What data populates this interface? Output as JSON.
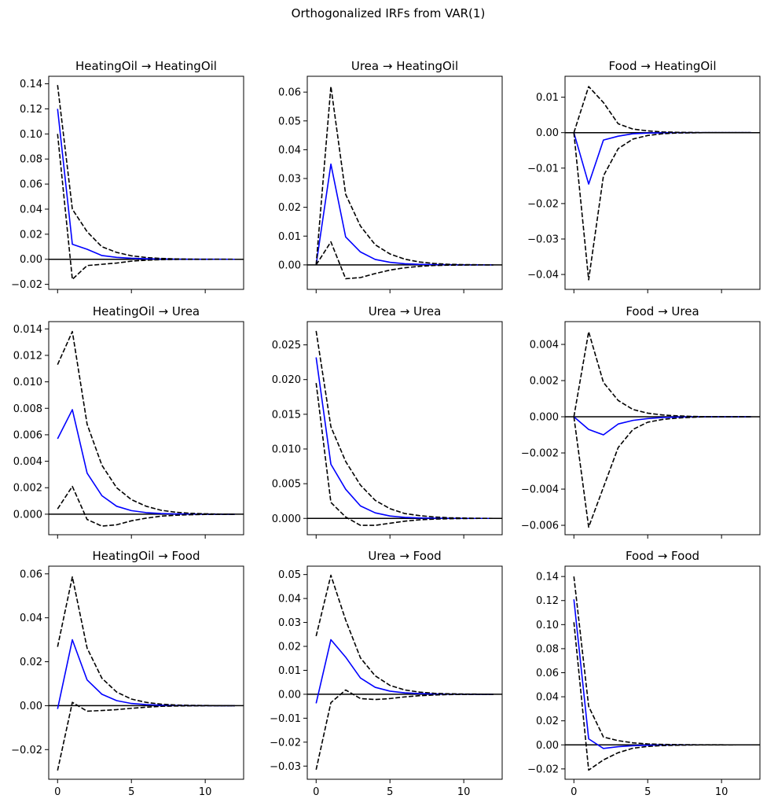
{
  "figure": {
    "title": "Orthogonalized IRFs from VAR(1)"
  },
  "colors": {
    "irf": "#0000ff",
    "band": "#000000",
    "zero": "#000000"
  },
  "chart_data": [
    {
      "type": "line",
      "title": "HeatingOil → HeatingOil",
      "ylim": [
        -0.024,
        0.146
      ],
      "yticks": [
        -0.02,
        0.0,
        0.02,
        0.04,
        0.06,
        0.08,
        0.1,
        0.12,
        0.14
      ],
      "ytick_labels": [
        "−0.02",
        "0.00",
        "0.02",
        "0.04",
        "0.06",
        "0.08",
        "0.10",
        "0.12",
        "0.14"
      ],
      "xlim": [
        -0.6,
        12.6
      ],
      "xticks": [
        0,
        5,
        10
      ],
      "xtick_labels": [],
      "x": [
        0,
        1,
        2,
        3,
        4,
        5,
        6,
        7,
        8,
        9,
        10,
        11,
        12
      ],
      "series": [
        {
          "name": "irf",
          "values": [
            0.12,
            0.012,
            0.008,
            0.003,
            0.0015,
            0.0008,
            0.0004,
            0.0002,
            0.0001,
            5e-05,
            2e-05,
            1e-05,
            0.0
          ]
        },
        {
          "name": "upper",
          "values": [
            0.139,
            0.04,
            0.022,
            0.01,
            0.0055,
            0.0028,
            0.0014,
            0.0007,
            0.0003,
            0.0001,
            5e-05,
            2e-05,
            1e-05
          ]
        },
        {
          "name": "lower",
          "values": [
            0.1,
            -0.016,
            -0.005,
            -0.004,
            -0.003,
            -0.0015,
            -0.0007,
            -0.0003,
            -0.0001,
            -5e-05,
            -2e-05,
            0.0,
            0.0
          ]
        }
      ]
    },
    {
      "type": "line",
      "title": "Urea → HeatingOil",
      "ylim": [
        -0.0085,
        0.0655
      ],
      "yticks": [
        0.0,
        0.01,
        0.02,
        0.03,
        0.04,
        0.05,
        0.06
      ],
      "ytick_labels": [
        "0.00",
        "0.01",
        "0.02",
        "0.03",
        "0.04",
        "0.05",
        "0.06"
      ],
      "xlim": [
        -0.6,
        12.6
      ],
      "xticks": [
        0,
        5,
        10
      ],
      "xtick_labels": [],
      "x": [
        0,
        1,
        2,
        3,
        4,
        5,
        6,
        7,
        8,
        9,
        10,
        11,
        12
      ],
      "series": [
        {
          "name": "irf",
          "values": [
            0.0,
            0.035,
            0.0097,
            0.0045,
            0.0019,
            0.0009,
            0.0004,
            0.0002,
            0.0001,
            5e-05,
            2e-05,
            1e-05,
            0.0
          ]
        },
        {
          "name": "upper",
          "values": [
            0.0,
            0.062,
            0.0245,
            0.0135,
            0.007,
            0.0038,
            0.002,
            0.001,
            0.0005,
            0.0002,
            0.0001,
            5e-05,
            0.0
          ]
        },
        {
          "name": "lower",
          "values": [
            0.0,
            0.008,
            -0.0048,
            -0.0044,
            -0.003,
            -0.0018,
            -0.001,
            -0.0005,
            -0.0002,
            -0.0001,
            -5e-05,
            0.0,
            0.0
          ]
        }
      ]
    },
    {
      "type": "line",
      "title": "Food → HeatingOil",
      "ylim": [
        -0.0442,
        0.0159
      ],
      "yticks": [
        -0.04,
        -0.03,
        -0.02,
        -0.01,
        0.0,
        0.01
      ],
      "ytick_labels": [
        "−0.04",
        "−0.03",
        "−0.02",
        "−0.01",
        "0.00",
        "0.01"
      ],
      "xlim": [
        -0.6,
        12.6
      ],
      "xticks": [
        0,
        5,
        10
      ],
      "xtick_labels": [],
      "x": [
        0,
        1,
        2,
        3,
        4,
        5,
        6,
        7,
        8,
        9,
        10,
        11,
        12
      ],
      "series": [
        {
          "name": "irf",
          "values": [
            0.0,
            -0.0145,
            -0.0021,
            -0.001,
            -0.0003,
            -0.0001,
            -5e-05,
            0.0,
            0.0,
            0.0,
            0.0,
            0.0,
            0.0
          ]
        },
        {
          "name": "upper",
          "values": [
            0.0,
            0.013,
            0.0085,
            0.0025,
            0.001,
            0.0005,
            0.0002,
            0.0001,
            5e-05,
            0.0,
            0.0,
            0.0,
            0.0
          ]
        },
        {
          "name": "lower",
          "values": [
            0.0,
            -0.0415,
            -0.0122,
            -0.0045,
            -0.0018,
            -0.0008,
            -0.0003,
            -0.0001,
            -5e-05,
            0.0,
            0.0,
            0.0,
            0.0
          ]
        }
      ]
    },
    {
      "type": "line",
      "title": "HeatingOil → Urea",
      "ylim": [
        -0.00155,
        0.01455
      ],
      "yticks": [
        0.0,
        0.002,
        0.004,
        0.006,
        0.008,
        0.01,
        0.012,
        0.014
      ],
      "ytick_labels": [
        "0.000",
        "0.002",
        "0.004",
        "0.006",
        "0.008",
        "0.010",
        "0.012",
        "0.014"
      ],
      "xlim": [
        -0.6,
        12.6
      ],
      "xticks": [
        0,
        5,
        10
      ],
      "xtick_labels": [],
      "x": [
        0,
        1,
        2,
        3,
        4,
        5,
        6,
        7,
        8,
        9,
        10,
        11,
        12
      ],
      "series": [
        {
          "name": "irf",
          "values": [
            0.0057,
            0.0079,
            0.0031,
            0.0014,
            0.0006,
            0.00027,
            0.00012,
            5e-05,
            2e-05,
            1e-05,
            0.0,
            0.0,
            0.0
          ]
        },
        {
          "name": "upper",
          "values": [
            0.0113,
            0.0138,
            0.0068,
            0.0037,
            0.002,
            0.0011,
            0.0006,
            0.0003,
            0.00015,
            7e-05,
            3e-05,
            1e-05,
            0.0
          ]
        },
        {
          "name": "lower",
          "values": [
            0.0004,
            0.0021,
            -0.0004,
            -0.0009,
            -0.0008,
            -0.0005,
            -0.0003,
            -0.00015,
            -8e-05,
            -4e-05,
            -2e-05,
            -1e-05,
            0.0
          ]
        }
      ]
    },
    {
      "type": "line",
      "title": "Urea → Urea",
      "ylim": [
        -0.00235,
        0.02835
      ],
      "yticks": [
        0.0,
        0.005,
        0.01,
        0.015,
        0.02,
        0.025
      ],
      "ytick_labels": [
        "0.000",
        "0.005",
        "0.010",
        "0.015",
        "0.020",
        "0.025"
      ],
      "xlim": [
        -0.6,
        12.6
      ],
      "xticks": [
        0,
        5,
        10
      ],
      "xtick_labels": [],
      "x": [
        0,
        1,
        2,
        3,
        4,
        5,
        6,
        7,
        8,
        9,
        10,
        11,
        12
      ],
      "series": [
        {
          "name": "irf",
          "values": [
            0.0232,
            0.0078,
            0.0042,
            0.0018,
            0.0008,
            0.00035,
            0.00015,
            7e-05,
            3e-05,
            1e-05,
            0.0,
            0.0,
            0.0
          ]
        },
        {
          "name": "upper",
          "values": [
            0.027,
            0.0132,
            0.0082,
            0.0048,
            0.0026,
            0.0014,
            0.0007,
            0.0004,
            0.0002,
            0.0001,
            5e-05,
            2e-05,
            0.0
          ]
        },
        {
          "name": "lower",
          "values": [
            0.0195,
            0.0023,
            0.0002,
            -0.001,
            -0.001,
            -0.0007,
            -0.0004,
            -0.0002,
            -0.0001,
            -5e-05,
            -2e-05,
            0.0,
            0.0
          ]
        }
      ]
    },
    {
      "type": "line",
      "title": "Food → Urea",
      "ylim": [
        -0.00652,
        0.00526
      ],
      "yticks": [
        -0.006,
        -0.004,
        -0.002,
        0.0,
        0.002,
        0.004
      ],
      "ytick_labels": [
        "−0.006",
        "−0.004",
        "−0.002",
        "0.000",
        "0.002",
        "0.004"
      ],
      "xlim": [
        -0.6,
        12.6
      ],
      "xticks": [
        0,
        5,
        10
      ],
      "xtick_labels": [],
      "x": [
        0,
        1,
        2,
        3,
        4,
        5,
        6,
        7,
        8,
        9,
        10,
        11,
        12
      ],
      "series": [
        {
          "name": "irf",
          "values": [
            0.0,
            -0.0007,
            -0.001,
            -0.0004,
            -0.0002,
            -0.0001,
            -4e-05,
            -2e-05,
            0.0,
            0.0,
            0.0,
            0.0,
            0.0
          ]
        },
        {
          "name": "upper",
          "values": [
            0.0,
            0.0047,
            0.0019,
            0.0009,
            0.0004,
            0.0002,
            0.0001,
            5e-05,
            2e-05,
            0.0,
            0.0,
            0.0,
            0.0
          ]
        },
        {
          "name": "lower",
          "values": [
            0.0,
            -0.0061,
            -0.0039,
            -0.0017,
            -0.0007,
            -0.0003,
            -0.00015,
            -7e-05,
            -3e-05,
            0.0,
            0.0,
            0.0,
            0.0
          ]
        }
      ]
    },
    {
      "type": "line",
      "title": "HeatingOil → Food",
      "ylim": [
        -0.0335,
        0.0635
      ],
      "yticks": [
        -0.02,
        0.0,
        0.02,
        0.04,
        0.06
      ],
      "ytick_labels": [
        "−0.02",
        "0.00",
        "0.02",
        "0.04",
        "0.06"
      ],
      "xlim": [
        -0.6,
        12.6
      ],
      "xticks": [
        0,
        5,
        10
      ],
      "xtick_labels": [
        "0",
        "5",
        "10"
      ],
      "x": [
        0,
        1,
        2,
        3,
        4,
        5,
        6,
        7,
        8,
        9,
        10,
        11,
        12
      ],
      "series": [
        {
          "name": "irf",
          "values": [
            -0.0015,
            0.03,
            0.0117,
            0.0052,
            0.0023,
            0.001,
            0.0005,
            0.0002,
            0.0001,
            4e-05,
            2e-05,
            0.0,
            0.0
          ]
        },
        {
          "name": "upper",
          "values": [
            0.0268,
            0.0586,
            0.0262,
            0.0125,
            0.0062,
            0.003,
            0.0015,
            0.0007,
            0.0003,
            0.00015,
            7e-05,
            3e-05,
            0.0
          ]
        },
        {
          "name": "lower",
          "values": [
            -0.0295,
            0.0015,
            -0.0025,
            -0.0022,
            -0.0018,
            -0.0012,
            -0.0007,
            -0.0003,
            -0.00015,
            -7e-05,
            -3e-05,
            -1e-05,
            0.0
          ]
        }
      ]
    },
    {
      "type": "line",
      "title": "Urea → Food",
      "ylim": [
        -0.0355,
        0.0535
      ],
      "yticks": [
        -0.03,
        -0.02,
        -0.01,
        0.0,
        0.01,
        0.02,
        0.03,
        0.04,
        0.05
      ],
      "ytick_labels": [
        "−0.03",
        "−0.02",
        "−0.01",
        "0.00",
        "0.01",
        "0.02",
        "0.03",
        "0.04",
        "0.05"
      ],
      "xlim": [
        -0.6,
        12.6
      ],
      "xticks": [
        0,
        5,
        10
      ],
      "xtick_labels": [
        "0",
        "5",
        "10"
      ],
      "x": [
        0,
        1,
        2,
        3,
        4,
        5,
        6,
        7,
        8,
        9,
        10,
        11,
        12
      ],
      "series": [
        {
          "name": "irf",
          "values": [
            -0.0038,
            0.0228,
            0.0155,
            0.0068,
            0.0029,
            0.0013,
            0.0006,
            0.0003,
            0.0001,
            5e-05,
            2e-05,
            0.0,
            0.0
          ]
        },
        {
          "name": "upper",
          "values": [
            0.0243,
            0.0497,
            0.031,
            0.0152,
            0.0077,
            0.0037,
            0.0018,
            0.0009,
            0.0004,
            0.0002,
            0.0001,
            5e-05,
            0.0
          ]
        },
        {
          "name": "lower",
          "values": [
            -0.0315,
            -0.0035,
            0.0018,
            -0.0018,
            -0.0022,
            -0.0018,
            -0.0011,
            -0.0006,
            -0.0003,
            -0.00012,
            -5e-05,
            -2e-05,
            0.0
          ]
        }
      ]
    },
    {
      "type": "line",
      "title": "Food → Food",
      "ylim": [
        -0.0286,
        0.1486
      ],
      "yticks": [
        -0.02,
        0.0,
        0.02,
        0.04,
        0.06,
        0.08,
        0.1,
        0.12,
        0.14
      ],
      "ytick_labels": [
        "−0.02",
        "0.00",
        "0.02",
        "0.04",
        "0.06",
        "0.08",
        "0.10",
        "0.12",
        "0.14"
      ],
      "xlim": [
        -0.6,
        12.6
      ],
      "xticks": [
        0,
        5,
        10
      ],
      "xtick_labels": [
        "0",
        "5",
        "10"
      ],
      "x": [
        0,
        1,
        2,
        3,
        4,
        5,
        6,
        7,
        8,
        9,
        10,
        11,
        12
      ],
      "series": [
        {
          "name": "irf",
          "values": [
            0.121,
            0.005,
            -0.003,
            -0.0015,
            -0.0007,
            -0.0003,
            -0.0001,
            -5e-05,
            0.0,
            0.0,
            0.0,
            0.0,
            0.0
          ]
        },
        {
          "name": "upper",
          "values": [
            0.14,
            0.032,
            0.0065,
            0.0035,
            0.0017,
            0.0008,
            0.0004,
            0.0002,
            0.0001,
            5e-05,
            2e-05,
            0.0,
            0.0
          ]
        },
        {
          "name": "lower",
          "values": [
            0.102,
            -0.021,
            -0.0125,
            -0.0065,
            -0.0028,
            -0.0013,
            -0.0006,
            -0.0003,
            -0.0001,
            -5e-05,
            -2e-05,
            0.0,
            0.0
          ]
        }
      ]
    }
  ]
}
